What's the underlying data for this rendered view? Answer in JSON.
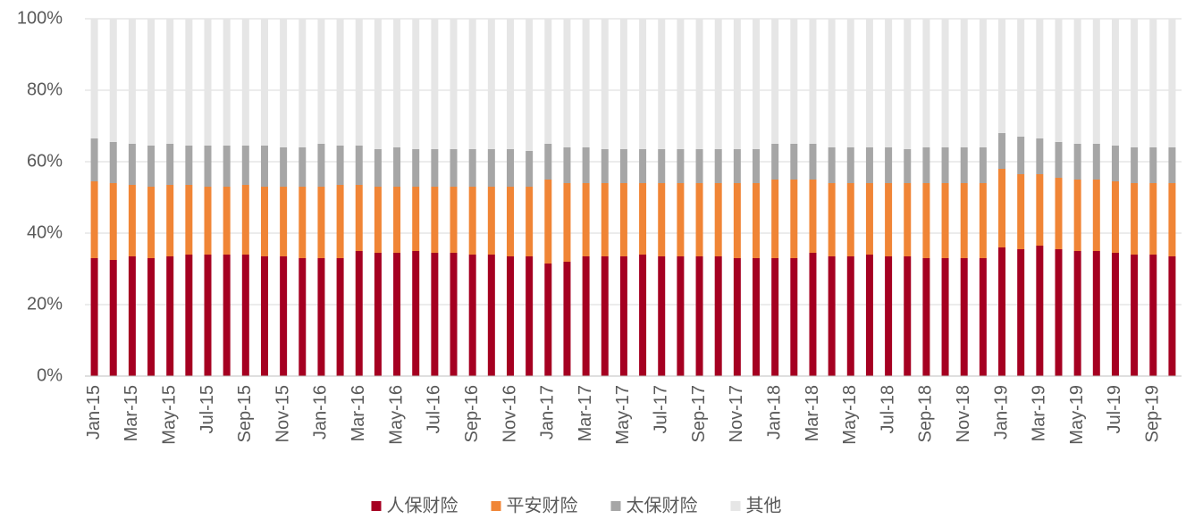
{
  "chart_data": {
    "type": "stacked_bar",
    "categories": [
      "Jan-15",
      null,
      "Mar-15",
      null,
      "May-15",
      null,
      "Jul-15",
      null,
      "Sep-15",
      null,
      "Nov-15",
      null,
      "Jan-16",
      null,
      "Mar-16",
      null,
      "May-16",
      null,
      "Jul-16",
      null,
      "Sep-16",
      null,
      "Nov-16",
      null,
      "Jan-17",
      null,
      "Mar-17",
      null,
      "May-17",
      null,
      "Jul-17",
      null,
      "Sep-17",
      null,
      "Nov-17",
      null,
      "Jan-18",
      null,
      "Mar-18",
      null,
      "May-18",
      null,
      "Jul-18",
      null,
      "Sep-18",
      null,
      "Nov-18",
      null,
      "Jan-19",
      null,
      "Mar-19",
      null,
      "May-19",
      null,
      "Jul-19",
      null,
      "Sep-19",
      null
    ],
    "series": [
      {
        "name": "人保财险",
        "color": "#a50021",
        "values": [
          33,
          32.5,
          33.5,
          33,
          33.5,
          34,
          34,
          34,
          34,
          33.5,
          33.5,
          33,
          33,
          33,
          35,
          34.5,
          34.5,
          35,
          34.5,
          34.5,
          34,
          34,
          33.5,
          33.5,
          31.5,
          32,
          33.5,
          33.5,
          33.5,
          34,
          33.5,
          33.5,
          33.5,
          33.5,
          33,
          33,
          33,
          33,
          34.5,
          33.5,
          33.5,
          34,
          33.5,
          33.5,
          33,
          33,
          33,
          33,
          36,
          35.5,
          36.5,
          35.5,
          35,
          35,
          34.5,
          34,
          34,
          33.5
        ]
      },
      {
        "name": "平安财险",
        "color": "#f08536",
        "values": [
          21.5,
          21.5,
          20,
          20,
          20,
          19.5,
          19,
          19,
          19.5,
          19.5,
          19.5,
          20,
          20,
          20.5,
          18.5,
          18.5,
          18.5,
          18,
          18.5,
          18.5,
          19,
          19,
          19.5,
          19.5,
          23.5,
          22,
          20.5,
          20.5,
          20.5,
          20,
          20.5,
          20.5,
          20.5,
          20.5,
          21,
          21,
          22,
          22,
          20.5,
          20.5,
          20.5,
          20,
          20.5,
          20.5,
          21,
          21,
          21,
          21,
          22,
          21,
          20,
          20,
          20,
          20,
          20,
          20,
          20,
          20.5
        ]
      },
      {
        "name": "太保财险",
        "color": "#a6a6a6",
        "values": [
          12,
          11.5,
          11.5,
          11.5,
          11.5,
          11,
          11.5,
          11.5,
          11,
          11.5,
          11,
          11,
          12,
          11,
          11,
          10.5,
          11,
          10.5,
          10.5,
          10.5,
          10.5,
          10.5,
          10.5,
          10,
          10,
          10,
          10,
          9.5,
          9.5,
          9.5,
          9.5,
          9.5,
          9.5,
          9.5,
          9.5,
          9.5,
          10,
          10,
          10,
          10,
          10,
          10,
          10,
          9.5,
          10,
          10,
          10,
          10,
          10,
          10.5,
          10,
          10,
          10,
          10,
          10,
          10,
          10,
          10
        ]
      },
      {
        "name": "其他",
        "color": "#e6e6e6",
        "values": [
          33.5,
          34.5,
          35,
          35.5,
          35,
          35.5,
          35.5,
          35.5,
          35.5,
          35.5,
          36,
          36,
          35,
          35.5,
          35.5,
          36.5,
          36,
          36.5,
          36.5,
          36.5,
          36.5,
          36.5,
          36.5,
          37,
          35,
          36,
          36,
          36.5,
          36.5,
          36.5,
          36.5,
          36.5,
          36.5,
          36.5,
          36.5,
          36.5,
          35,
          35,
          35,
          36,
          36,
          36,
          36,
          36.5,
          36,
          36,
          36,
          36,
          32,
          33,
          33.5,
          34.5,
          35,
          35,
          35.5,
          36,
          36,
          36
        ]
      }
    ],
    "ylim": [
      0,
      100
    ],
    "yticks": [
      {
        "value": 0,
        "label": "0%"
      },
      {
        "value": 20,
        "label": "20%"
      },
      {
        "value": 40,
        "label": "40%"
      },
      {
        "value": 60,
        "label": "60%"
      },
      {
        "value": 80,
        "label": "80%"
      },
      {
        "value": 100,
        "label": "100%"
      }
    ],
    "grid": true,
    "legend": "bottom"
  }
}
